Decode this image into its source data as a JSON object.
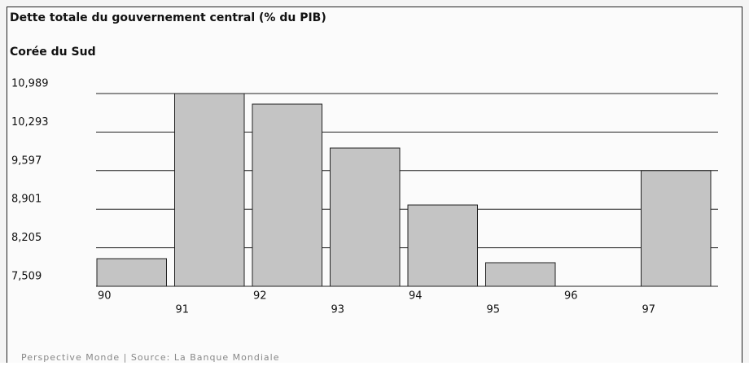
{
  "chart_data": {
    "type": "bar",
    "title": "Dette totale du gouvernement central (% du PIB)",
    "subtitle": "Corée du Sud",
    "footer": "Perspective Monde | Source: La Banque Mondiale",
    "categories": [
      "90",
      "91",
      "92",
      "93",
      "94",
      "95",
      "96",
      "97"
    ],
    "values": [
      8.008,
      10.989,
      10.798,
      10.005,
      8.977,
      7.935,
      null,
      9.597
    ],
    "color": "#c4c4c4",
    "ylim": [
      7.509,
      10.989
    ],
    "yticks": [
      {
        "value": 7.509,
        "label": "7,509"
      },
      {
        "value": 8.205,
        "label": "8,205"
      },
      {
        "value": 8.901,
        "label": "8,901"
      },
      {
        "value": 9.597,
        "label": "9,597"
      },
      {
        "value": 10.293,
        "label": "10,293"
      },
      {
        "value": 10.989,
        "label": "10,989"
      }
    ],
    "grid": true
  }
}
